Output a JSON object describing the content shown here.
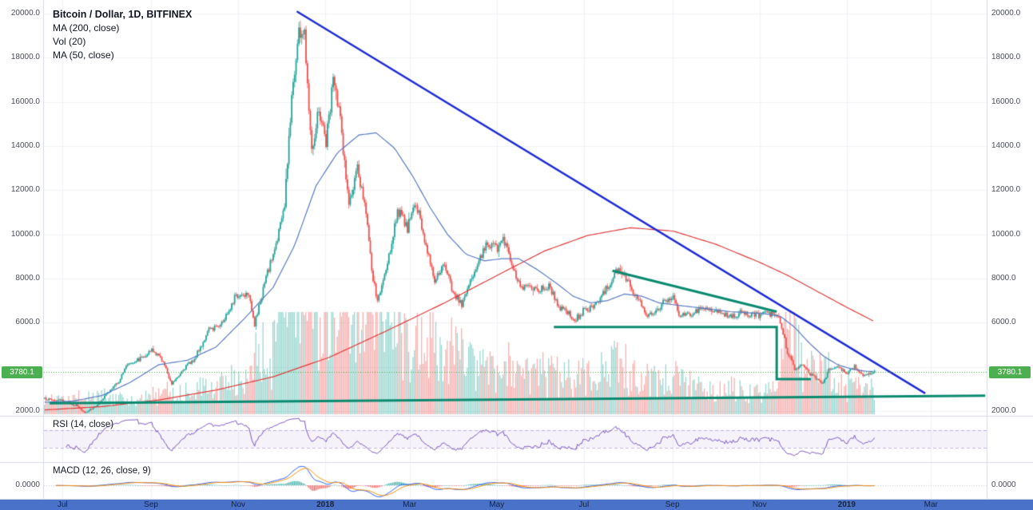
{
  "header": {
    "title": "Bitcoin / Dollar, 1D, BITFINEX",
    "indicators": [
      "MA (200, close)",
      "Vol (20)",
      "MA (50, close)"
    ]
  },
  "panes": {
    "rsi_label": "RSI (14, close)",
    "macd_label": "MACD (12, 26, close, 9)",
    "macd_zero_label": "0.0000"
  },
  "price_axis": {
    "last_price": "3780.1",
    "labels": [
      {
        "text": "20000.0",
        "value": 20000
      },
      {
        "text": "18000.0",
        "value": 18000
      },
      {
        "text": "16000.0",
        "value": 16000
      },
      {
        "text": "14000.0",
        "value": 14000
      },
      {
        "text": "12000.0",
        "value": 12000
      },
      {
        "text": "10000.0",
        "value": 10000
      },
      {
        "text": "8000.0",
        "value": 8000
      },
      {
        "text": "6000.0",
        "value": 6000
      },
      {
        "text": "2000.0",
        "value": 2000
      }
    ]
  },
  "time_axis": {
    "labels": [
      {
        "text": "Jul",
        "day": 13,
        "strong": false
      },
      {
        "text": "Sep",
        "day": 75,
        "strong": false
      },
      {
        "text": "Nov",
        "day": 136,
        "strong": false
      },
      {
        "text": "2018",
        "day": 197,
        "strong": true
      },
      {
        "text": "Mar",
        "day": 256,
        "strong": false
      },
      {
        "text": "May",
        "day": 317,
        "strong": false
      },
      {
        "text": "Jul",
        "day": 378,
        "strong": false
      },
      {
        "text": "Sep",
        "day": 440,
        "strong": false
      },
      {
        "text": "Nov",
        "day": 501,
        "strong": false
      },
      {
        "text": "2019",
        "day": 562,
        "strong": true
      },
      {
        "text": "Mar",
        "day": 621,
        "strong": false
      }
    ]
  },
  "colors": {
    "up": "#26a69a",
    "down": "#ef5350",
    "vol_up": "rgba(38,166,154,0.45)",
    "vol_down": "rgba(239,83,80,0.45)",
    "ma50": "#5b7cc4",
    "ma200": "#e03c3c",
    "trendline": "#1e2bd6",
    "annotation": "#0a8a70",
    "last_price": "#4caf50",
    "rsi": "#7e57c2",
    "rsi_band": "rgba(126,87,194,0.08)",
    "rsi_band_line": "rgba(126,87,194,0.45)",
    "macd": "#2962ff",
    "signal": "#ff8f00",
    "hist_up": "rgba(38,166,154,0.85)",
    "hist_down": "rgba(239,83,80,0.85)",
    "macd_zero_line": "#c6cbd9",
    "grid": "#f0f2f8",
    "separator": "#d8dce8",
    "time_axis_bg": "#4a72c8",
    "time_axis_text": "#18223a"
  },
  "chart_data": {
    "type": "candlestick",
    "title": "Bitcoin / Dollar, 1D, BITFINEX",
    "ylim": [
      1800,
      20600
    ],
    "price_gridline_step": 2000,
    "days_total": 660,
    "candle_days": 582,
    "last_price": 3780.1,
    "price_anchors": [
      [
        0,
        2550
      ],
      [
        13,
        2450
      ],
      [
        22,
        2250
      ],
      [
        28,
        1930
      ],
      [
        36,
        2250
      ],
      [
        44,
        2800
      ],
      [
        52,
        3350
      ],
      [
        58,
        4150
      ],
      [
        66,
        4350
      ],
      [
        75,
        4750
      ],
      [
        82,
        4350
      ],
      [
        89,
        3250
      ],
      [
        97,
        3900
      ],
      [
        105,
        4380
      ],
      [
        115,
        5650
      ],
      [
        125,
        6050
      ],
      [
        133,
        7150
      ],
      [
        143,
        7400
      ],
      [
        147,
        5900
      ],
      [
        155,
        8050
      ],
      [
        161,
        9300
      ],
      [
        168,
        11300
      ],
      [
        173,
        16300
      ],
      [
        178,
        19200
      ],
      [
        182,
        19000
      ],
      [
        187,
        13900
      ],
      [
        192,
        15700
      ],
      [
        197,
        14200
      ],
      [
        202,
        17000
      ],
      [
        207,
        15200
      ],
      [
        213,
        11300
      ],
      [
        219,
        12900
      ],
      [
        224,
        11600
      ],
      [
        229,
        8300
      ],
      [
        233,
        6950
      ],
      [
        240,
        8600
      ],
      [
        247,
        11100
      ],
      [
        254,
        10300
      ],
      [
        260,
        11400
      ],
      [
        266,
        9800
      ],
      [
        273,
        7950
      ],
      [
        280,
        8550
      ],
      [
        286,
        7400
      ],
      [
        292,
        6850
      ],
      [
        299,
        8000
      ],
      [
        305,
        8950
      ],
      [
        310,
        9650
      ],
      [
        317,
        9350
      ],
      [
        321,
        9800
      ],
      [
        328,
        8500
      ],
      [
        334,
        7550
      ],
      [
        339,
        7600
      ],
      [
        346,
        7500
      ],
      [
        353,
        7650
      ],
      [
        360,
        6750
      ],
      [
        366,
        6450
      ],
      [
        371,
        6100
      ],
      [
        378,
        6600
      ],
      [
        385,
        6700
      ],
      [
        392,
        7400
      ],
      [
        397,
        7950
      ],
      [
        401,
        8350
      ],
      [
        406,
        8150
      ],
      [
        412,
        7450
      ],
      [
        417,
        7050
      ],
      [
        422,
        6250
      ],
      [
        428,
        6450
      ],
      [
        434,
        7000
      ],
      [
        440,
        7250
      ],
      [
        444,
        6450
      ],
      [
        448,
        6250
      ],
      [
        454,
        6500
      ],
      [
        461,
        6700
      ],
      [
        468,
        6550
      ],
      [
        475,
        6450
      ],
      [
        480,
        6300
      ],
      [
        487,
        6450
      ],
      [
        494,
        6350
      ],
      [
        500,
        6350
      ],
      [
        507,
        6400
      ],
      [
        514,
        6350
      ],
      [
        517,
        5550
      ],
      [
        520,
        4550
      ],
      [
        523,
        4350
      ],
      [
        525,
        3850
      ],
      [
        528,
        4050
      ],
      [
        531,
        4150
      ],
      [
        536,
        3650
      ],
      [
        540,
        3450
      ],
      [
        545,
        3250
      ],
      [
        549,
        3850
      ],
      [
        554,
        4050
      ],
      [
        558,
        3850
      ],
      [
        562,
        3750
      ],
      [
        567,
        4000
      ],
      [
        571,
        3650
      ],
      [
        576,
        3600
      ],
      [
        581,
        3780
      ]
    ],
    "ma200_anchors": [
      [
        0,
        2050
      ],
      [
        40,
        2200
      ],
      [
        80,
        2500
      ],
      [
        120,
        2950
      ],
      [
        160,
        3550
      ],
      [
        200,
        4450
      ],
      [
        240,
        5650
      ],
      [
        280,
        6900
      ],
      [
        320,
        8250
      ],
      [
        350,
        9250
      ],
      [
        380,
        9950
      ],
      [
        410,
        10300
      ],
      [
        440,
        10150
      ],
      [
        470,
        9550
      ],
      [
        500,
        8750
      ],
      [
        520,
        8150
      ],
      [
        540,
        7450
      ],
      [
        560,
        6750
      ],
      [
        581,
        6050
      ]
    ],
    "ma50_anchors": [
      [
        0,
        2400
      ],
      [
        20,
        2450
      ],
      [
        40,
        2700
      ],
      [
        60,
        3300
      ],
      [
        80,
        4100
      ],
      [
        100,
        4300
      ],
      [
        120,
        4900
      ],
      [
        140,
        6200
      ],
      [
        160,
        7600
      ],
      [
        175,
        9500
      ],
      [
        190,
        12200
      ],
      [
        205,
        13700
      ],
      [
        220,
        14500
      ],
      [
        232,
        14600
      ],
      [
        245,
        13900
      ],
      [
        258,
        12600
      ],
      [
        270,
        11200
      ],
      [
        282,
        10000
      ],
      [
        295,
        9100
      ],
      [
        308,
        8800
      ],
      [
        320,
        8900
      ],
      [
        332,
        8900
      ],
      [
        345,
        8400
      ],
      [
        358,
        7800
      ],
      [
        370,
        7200
      ],
      [
        382,
        6900
      ],
      [
        394,
        7000
      ],
      [
        406,
        7300
      ],
      [
        418,
        7200
      ],
      [
        430,
        6900
      ],
      [
        442,
        6800
      ],
      [
        455,
        6700
      ],
      [
        468,
        6600
      ],
      [
        480,
        6500
      ],
      [
        492,
        6450
      ],
      [
        505,
        6400
      ],
      [
        515,
        6300
      ],
      [
        525,
        5800
      ],
      [
        535,
        5100
      ],
      [
        545,
        4500
      ],
      [
        555,
        4100
      ],
      [
        565,
        3900
      ],
      [
        575,
        3800
      ],
      [
        581,
        3790
      ]
    ],
    "volume_base_anchors": [
      [
        0,
        9
      ],
      [
        60,
        10
      ],
      [
        100,
        12
      ],
      [
        140,
        22
      ],
      [
        160,
        38
      ],
      [
        172,
        60
      ],
      [
        182,
        68
      ],
      [
        195,
        58
      ],
      [
        210,
        50
      ],
      [
        225,
        52
      ],
      [
        233,
        62
      ],
      [
        245,
        48
      ],
      [
        260,
        42
      ],
      [
        273,
        44
      ],
      [
        285,
        36
      ],
      [
        300,
        32
      ],
      [
        315,
        28
      ],
      [
        330,
        30
      ],
      [
        345,
        26
      ],
      [
        360,
        24
      ],
      [
        375,
        24
      ],
      [
        390,
        27
      ],
      [
        401,
        30
      ],
      [
        415,
        25
      ],
      [
        428,
        22
      ],
      [
        440,
        24
      ],
      [
        455,
        20
      ],
      [
        470,
        17
      ],
      [
        485,
        15
      ],
      [
        500,
        14
      ],
      [
        514,
        18
      ],
      [
        520,
        58
      ],
      [
        526,
        42
      ],
      [
        532,
        30
      ],
      [
        540,
        26
      ],
      [
        548,
        29
      ],
      [
        554,
        24
      ],
      [
        562,
        18
      ],
      [
        570,
        21
      ],
      [
        581,
        16
      ]
    ],
    "trendline": {
      "name": "downtrend-line",
      "points": [
        [
          177,
          20100
        ],
        [
          617,
          2800
        ]
      ]
    },
    "annotations": [
      {
        "name": "descending-resistance",
        "points": [
          [
            398,
            8350
          ],
          [
            513,
            6500
          ]
        ]
      },
      {
        "name": "support-step",
        "points": [
          [
            357,
            5800
          ],
          [
            513,
            5800
          ],
          [
            513,
            3450
          ],
          [
            537,
            3450
          ]
        ]
      },
      {
        "name": "long-term-support",
        "points": [
          [
            4,
            2350
          ],
          [
            659,
            2700
          ]
        ]
      }
    ],
    "rsi": {
      "period": 14,
      "band": [
        30,
        70
      ]
    },
    "macd": {
      "params": [
        12,
        26,
        9
      ]
    }
  }
}
